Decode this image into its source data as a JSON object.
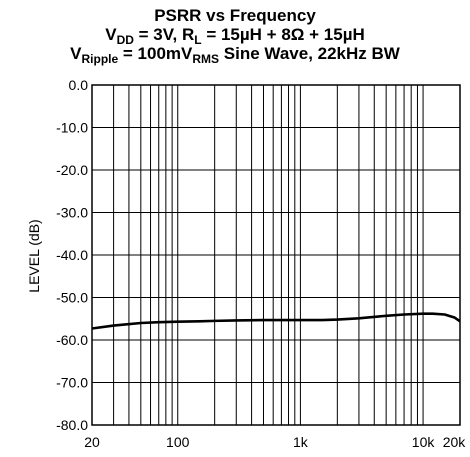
{
  "chart_data": {
    "type": "line",
    "title": "PSRR vs Frequency",
    "subtitle_line1": {
      "p1": "V",
      "s1": "DD",
      "p2": " = 3V, R",
      "s2": "L",
      "p3": " = 15µH + 8Ω + 15µH"
    },
    "subtitle_line2": {
      "p1": "V",
      "s1": "Ripple",
      "p2": " = 100mV",
      "s2": "RMS",
      "p3": " Sine Wave, 22kHz BW"
    },
    "xlabel": "",
    "ylabel": "LEVEL (dB)",
    "xscale": "log",
    "xlim": [
      20,
      20000
    ],
    "ylim": [
      -80,
      0
    ],
    "grid": true,
    "x_tick_labels": [
      {
        "value": 20,
        "label": "20"
      },
      {
        "value": 100,
        "label": "100"
      },
      {
        "value": 1000,
        "label": "1k"
      },
      {
        "value": 10000,
        "label": "10k"
      },
      {
        "value": 20000,
        "label": "20k"
      }
    ],
    "y_tick_labels": [
      {
        "value": 0,
        "label": "0.0"
      },
      {
        "value": -10,
        "label": "-10.0"
      },
      {
        "value": -20,
        "label": "-20.0"
      },
      {
        "value": -30,
        "label": "-30.0"
      },
      {
        "value": -40,
        "label": "-40.0"
      },
      {
        "value": -50,
        "label": "-50.0"
      },
      {
        "value": -60,
        "label": "-60.0"
      },
      {
        "value": -70,
        "label": "-70.0"
      },
      {
        "value": -80,
        "label": "-80.0"
      }
    ],
    "series": [
      {
        "x": [
          20,
          30,
          50,
          70,
          100,
          150,
          200,
          300,
          500,
          700,
          1000,
          1500,
          2000,
          3000,
          5000,
          7000,
          10000,
          12000,
          15000,
          18000,
          20000
        ],
        "y": [
          -57.3,
          -56.6,
          -56.0,
          -55.8,
          -55.7,
          -55.6,
          -55.5,
          -55.4,
          -55.3,
          -55.3,
          -55.3,
          -55.3,
          -55.2,
          -54.9,
          -54.3,
          -54.0,
          -53.8,
          -53.8,
          -54.0,
          -54.7,
          -55.6
        ]
      }
    ]
  }
}
